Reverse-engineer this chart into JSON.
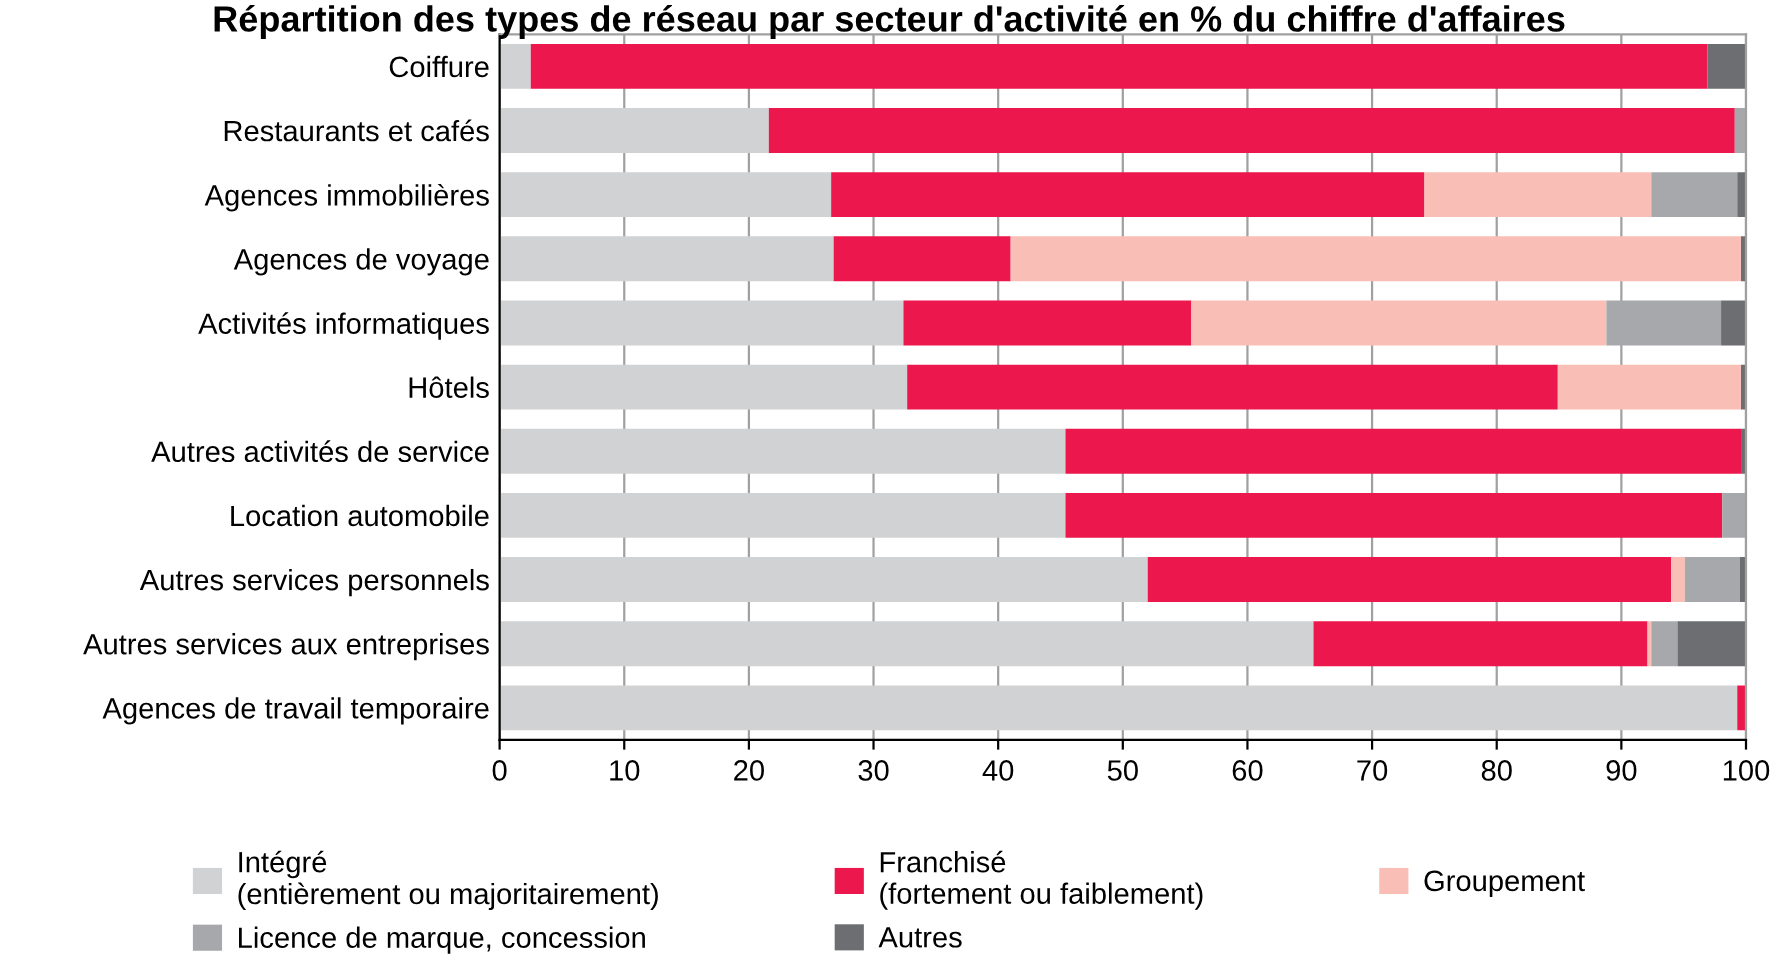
{
  "chart_data": {
    "type": "bar",
    "orientation": "horizontal",
    "stacked": true,
    "title": "Répartition des types de réseau par secteur d'activité en % du chiffre d'affaires",
    "categories": [
      "Coiffure",
      "Restaurants et cafés",
      "Agences immobilières",
      "Agences de voyage",
      "Activités informatiques",
      "Hôtels",
      "Autres activités de service",
      "Location automobile",
      "Autres services personnels",
      "Autres services aux entreprises",
      "Agences de travail temporaire"
    ],
    "series": [
      {
        "name": "Intégré\n(entièrement ou majoritairement)",
        "color": "#d1d2d4",
        "values": [
          2.5,
          21.6,
          26.6,
          26.8,
          32.4,
          32.7,
          45.4,
          45.4,
          52.0,
          65.3,
          99.3
        ]
      },
      {
        "name": "Franchisé\n(fortement ou faiblement)",
        "color": "#ec174c",
        "values": [
          94.4,
          77.5,
          47.6,
          14.2,
          23.1,
          52.2,
          54.2,
          52.7,
          42.0,
          26.8,
          0.7
        ]
      },
      {
        "name": "Groupement",
        "color": "#f9bfb6",
        "values": [
          0,
          0,
          18.2,
          58.6,
          33.3,
          14.7,
          0,
          0,
          1.1,
          0.3,
          0
        ]
      },
      {
        "name": "Licence de marque, concession",
        "color": "#a7a8ab",
        "values": [
          0,
          0.9,
          6.9,
          0,
          9.2,
          0,
          0,
          1.9,
          4.4,
          2.1,
          0
        ]
      },
      {
        "name": "Autres",
        "color": "#6d6e72",
        "values": [
          3.1,
          0,
          0.7,
          0.4,
          2.0,
          0.4,
          0.4,
          0,
          0.5,
          5.5,
          0
        ]
      }
    ],
    "xlim": [
      0,
      100
    ],
    "xticks": [
      0,
      10,
      20,
      30,
      40,
      50,
      60,
      70,
      80,
      90,
      100
    ],
    "grid": "x",
    "legend": "bottom"
  }
}
